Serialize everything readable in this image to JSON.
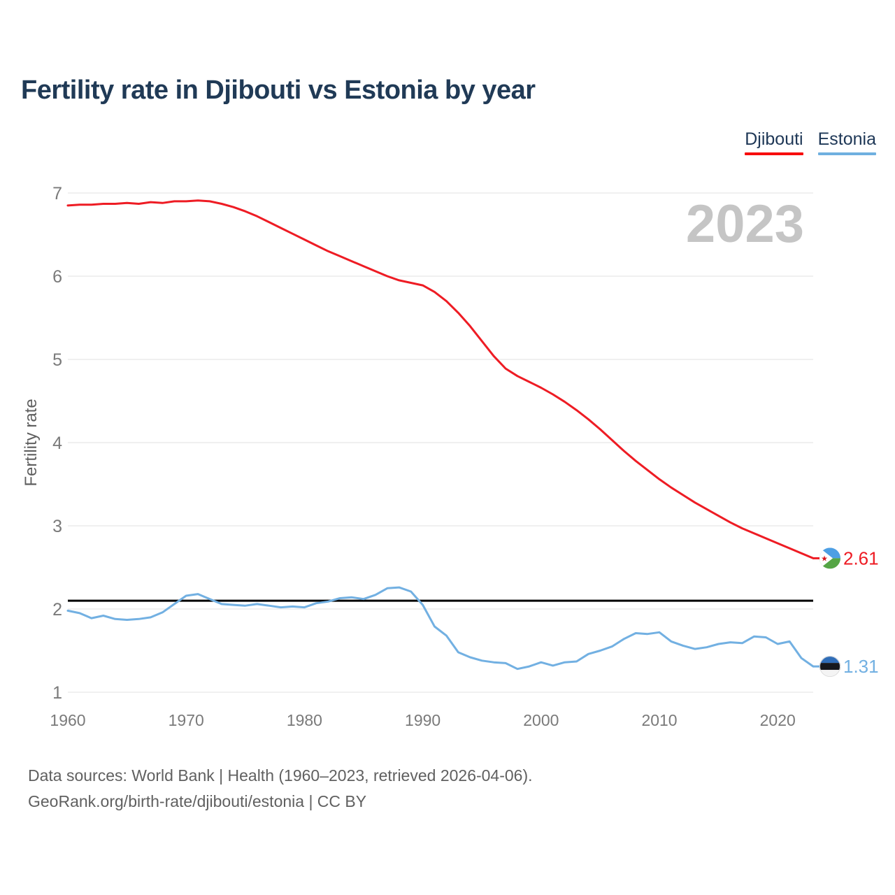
{
  "header": {
    "title": "Fertility rate in Djibouti vs Estonia by year",
    "title_color": "#203a56"
  },
  "legend": {
    "items": [
      {
        "label": "Djibouti",
        "underline_color": "#f70d0d"
      },
      {
        "label": "Estonia",
        "underline_color": "#6fb0e0"
      }
    ],
    "text_color": "#1e3756"
  },
  "watermark": "2023",
  "footer": {
    "line1": "Data sources: World Bank | Health (1960–2023, retrieved 2026-04-06).",
    "line2": "GeoRank.org/birth-rate/djibouti/estonia | CC BY"
  },
  "colors": {
    "grid": "#ececec",
    "axis_text": "#7a7a7a",
    "axis_title": "#5f5f5f",
    "watermark": "#c5c5c5",
    "reference_line": "#000000",
    "flag_djibouti": {
      "blue": "#4d9fe4",
      "green": "#55a545",
      "triangle": "#ffffff",
      "star": "#d7141a"
    },
    "flag_estonia": {
      "blue": "#2f6db8",
      "black": "#16181d",
      "white": "#f4f4f4",
      "ring": "#dddddd"
    }
  },
  "icons": [
    "djibouti-flag-icon",
    "estonia-flag-icon"
  ],
  "chart_data": {
    "type": "line",
    "title": "Fertility rate in Djibouti vs Estonia by year",
    "xlabel": "",
    "ylabel": "Fertility rate",
    "xlim": [
      1960,
      2023
    ],
    "ylim": [
      1,
      7
    ],
    "x_ticks": [
      1960,
      1970,
      1980,
      1990,
      2000,
      2010,
      2020
    ],
    "y_ticks": [
      1,
      2,
      3,
      4,
      5,
      6,
      7
    ],
    "grid": "horizontal",
    "legend_position": "top-right",
    "watermark": "2023",
    "reference_line": {
      "value": 2.1
    },
    "x_start_year": 1960,
    "series": [
      {
        "name": "Djibouti",
        "color": "#ee1c24",
        "end_label": "2.61",
        "flag": "djibouti",
        "values": [
          6.85,
          6.86,
          6.86,
          6.87,
          6.87,
          6.88,
          6.87,
          6.89,
          6.88,
          6.9,
          6.9,
          6.91,
          6.9,
          6.87,
          6.83,
          6.78,
          6.72,
          6.65,
          6.58,
          6.51,
          6.44,
          6.37,
          6.3,
          6.24,
          6.18,
          6.12,
          6.06,
          6.0,
          5.95,
          5.92,
          5.89,
          5.81,
          5.7,
          5.56,
          5.4,
          5.22,
          5.04,
          4.89,
          4.8,
          4.73,
          4.66,
          4.58,
          4.49,
          4.39,
          4.28,
          4.16,
          4.03,
          3.9,
          3.78,
          3.67,
          3.56,
          3.46,
          3.37,
          3.28,
          3.2,
          3.12,
          3.04,
          2.97,
          2.91,
          2.85,
          2.79,
          2.73,
          2.67,
          2.61
        ]
      },
      {
        "name": "Estonia",
        "color": "#72b0e2",
        "end_label": "1.31",
        "flag": "estonia",
        "values": [
          1.98,
          1.95,
          1.89,
          1.92,
          1.88,
          1.87,
          1.88,
          1.9,
          1.96,
          2.06,
          2.16,
          2.18,
          2.12,
          2.06,
          2.05,
          2.04,
          2.06,
          2.04,
          2.02,
          2.03,
          2.02,
          2.07,
          2.09,
          2.13,
          2.14,
          2.12,
          2.17,
          2.25,
          2.26,
          2.21,
          2.05,
          1.79,
          1.68,
          1.48,
          1.42,
          1.38,
          1.36,
          1.35,
          1.28,
          1.31,
          1.36,
          1.32,
          1.36,
          1.37,
          1.46,
          1.5,
          1.55,
          1.64,
          1.71,
          1.7,
          1.72,
          1.61,
          1.56,
          1.52,
          1.54,
          1.58,
          1.6,
          1.59,
          1.67,
          1.66,
          1.58,
          1.61,
          1.41,
          1.31
        ]
      }
    ]
  }
}
